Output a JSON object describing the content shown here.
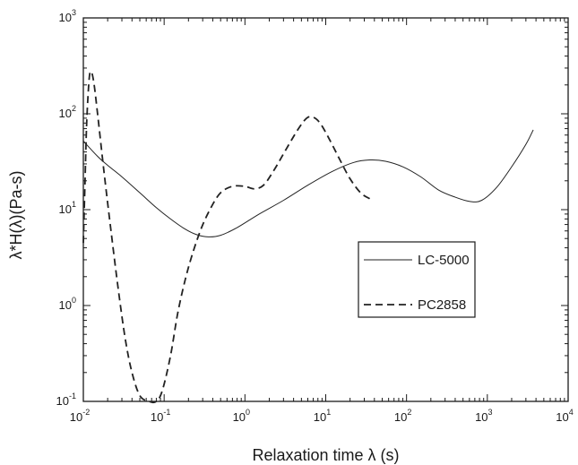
{
  "chart_data": {
    "type": "line",
    "xlabel": "Relaxation time λ (s)",
    "ylabel": "λ*H(λ)(Pa-s)",
    "xscale": "log",
    "yscale": "log",
    "xlim": [
      0.01,
      10000
    ],
    "ylim": [
      0.1,
      1000
    ],
    "x_ticks": [
      {
        "value": 0.01,
        "base": "10",
        "exp": "-2"
      },
      {
        "value": 0.1,
        "base": "10",
        "exp": "-1"
      },
      {
        "value": 1,
        "base": "10",
        "exp": "0"
      },
      {
        "value": 10,
        "base": "10",
        "exp": "1"
      },
      {
        "value": 100,
        "base": "10",
        "exp": "2"
      },
      {
        "value": 1000,
        "base": "10",
        "exp": "3"
      },
      {
        "value": 10000,
        "base": "10",
        "exp": "4"
      }
    ],
    "y_ticks": [
      {
        "value": 0.1,
        "base": "10",
        "exp": "-1"
      },
      {
        "value": 1,
        "base": "10",
        "exp": "0"
      },
      {
        "value": 10,
        "base": "10",
        "exp": "1"
      },
      {
        "value": 100,
        "base": "10",
        "exp": "2"
      },
      {
        "value": 1000,
        "base": "10",
        "exp": "3"
      }
    ],
    "legend": {
      "position": "center-right",
      "entries": [
        {
          "label": "LC-5000",
          "style": "solid"
        },
        {
          "label": "PC2858",
          "style": "dashed"
        }
      ]
    },
    "series": [
      {
        "name": "LC-5000",
        "style": "solid",
        "color": "#222222",
        "points": [
          [
            0.01,
            52
          ],
          [
            0.015,
            36
          ],
          [
            0.02,
            29
          ],
          [
            0.03,
            22
          ],
          [
            0.05,
            15
          ],
          [
            0.08,
            10.5
          ],
          [
            0.12,
            8
          ],
          [
            0.18,
            6.3
          ],
          [
            0.25,
            5.5
          ],
          [
            0.35,
            5.2
          ],
          [
            0.5,
            5.4
          ],
          [
            0.8,
            6.5
          ],
          [
            1.5,
            9
          ],
          [
            3,
            12.5
          ],
          [
            6,
            18
          ],
          [
            12,
            25
          ],
          [
            22,
            31
          ],
          [
            35,
            33
          ],
          [
            55,
            32
          ],
          [
            90,
            28
          ],
          [
            150,
            22
          ],
          [
            250,
            16
          ],
          [
            400,
            13.5
          ],
          [
            600,
            12.2
          ],
          [
            850,
            12.5
          ],
          [
            1300,
            17
          ],
          [
            2000,
            28
          ],
          [
            3000,
            48
          ],
          [
            3700,
            68
          ]
        ]
      },
      {
        "name": "PC2858",
        "style": "dashed",
        "color": "#222222",
        "points": [
          [
            0.01,
            4.5
          ],
          [
            0.0105,
            20
          ],
          [
            0.011,
            80
          ],
          [
            0.0118,
            230
          ],
          [
            0.0125,
            275
          ],
          [
            0.0135,
            210
          ],
          [
            0.015,
            100
          ],
          [
            0.018,
            25
          ],
          [
            0.022,
            6
          ],
          [
            0.027,
            1.5
          ],
          [
            0.033,
            0.45
          ],
          [
            0.04,
            0.2
          ],
          [
            0.05,
            0.115
          ],
          [
            0.065,
            0.1
          ],
          [
            0.08,
            0.1
          ],
          [
            0.095,
            0.13
          ],
          [
            0.12,
            0.3
          ],
          [
            0.15,
            0.9
          ],
          [
            0.2,
            2.5
          ],
          [
            0.28,
            6
          ],
          [
            0.38,
            10.5
          ],
          [
            0.5,
            15
          ],
          [
            0.7,
            17.5
          ],
          [
            1.0,
            17.5
          ],
          [
            1.3,
            16.5
          ],
          [
            1.7,
            18
          ],
          [
            2.3,
            26
          ],
          [
            3.2,
            42
          ],
          [
            4.5,
            68
          ],
          [
            5.8,
            90
          ],
          [
            7,
            92
          ],
          [
            8.5,
            80
          ],
          [
            11,
            55
          ],
          [
            15,
            33
          ],
          [
            20,
            21
          ],
          [
            27,
            15
          ],
          [
            35,
            13
          ]
        ]
      }
    ]
  }
}
